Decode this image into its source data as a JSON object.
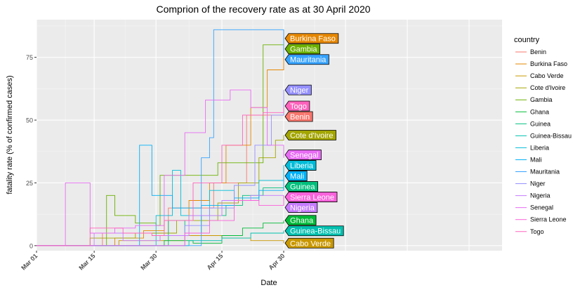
{
  "chart_data": {
    "type": "line",
    "title": "Comprion of the recovery rate as at 30 April 2020",
    "xlabel": "Date",
    "ylabel": "fatality rate (% of confirmed cases)",
    "legend_title": "country",
    "legend_position": "right",
    "grid": true,
    "x_ticks": [
      "Mar 01",
      "Mar 15",
      "Mar 30",
      "Apr 15",
      "Apr 30"
    ],
    "y_ticks": [
      "0",
      "25",
      "50",
      "75"
    ],
    "xlim": [
      "2020-03-01",
      "2020-06-22"
    ],
    "ylim": [
      -2,
      90
    ],
    "series": [
      {
        "name": "Benin",
        "color": "#F8766D",
        "label": "Benin",
        "values": [
          [
            "2020-03-01",
            0
          ],
          [
            "2020-03-16",
            0
          ],
          [
            "2020-03-17",
            5
          ],
          [
            "2020-04-01",
            5
          ],
          [
            "2020-04-02",
            15
          ],
          [
            "2020-04-12",
            15
          ],
          [
            "2020-04-13",
            25
          ],
          [
            "2020-04-20",
            25
          ],
          [
            "2020-04-21",
            52
          ],
          [
            "2020-04-30",
            52
          ]
        ]
      },
      {
        "name": "Burkina Faso",
        "color": "#E58700",
        "label": "Burkina Faso",
        "values": [
          [
            "2020-03-01",
            0
          ],
          [
            "2020-03-15",
            0
          ],
          [
            "2020-03-20",
            3
          ],
          [
            "2020-03-27",
            6
          ],
          [
            "2020-04-01",
            10
          ],
          [
            "2020-04-07",
            18
          ],
          [
            "2020-04-12",
            25
          ],
          [
            "2020-04-16",
            40
          ],
          [
            "2020-04-22",
            55
          ],
          [
            "2020-04-26",
            70
          ],
          [
            "2020-04-30",
            80
          ]
        ]
      },
      {
        "name": "Cabo Verde",
        "color": "#C99800",
        "label": "Cabo Verde",
        "values": [
          [
            "2020-03-01",
            0
          ],
          [
            "2020-03-20",
            0
          ],
          [
            "2020-03-21",
            2
          ],
          [
            "2020-04-04",
            2
          ],
          [
            "2020-04-06",
            4
          ],
          [
            "2020-04-15",
            3
          ],
          [
            "2020-04-22",
            2
          ],
          [
            "2020-04-30",
            1
          ]
        ]
      },
      {
        "name": "Cote d'Ivoire",
        "color": "#A3A500",
        "label": "Cote d'Ivoire",
        "values": [
          [
            "2020-03-01",
            0
          ],
          [
            "2020-03-12",
            0
          ],
          [
            "2020-03-14",
            3
          ],
          [
            "2020-03-25",
            5
          ],
          [
            "2020-04-04",
            10
          ],
          [
            "2020-04-14",
            17
          ],
          [
            "2020-04-19",
            25
          ],
          [
            "2020-04-24",
            35
          ],
          [
            "2020-04-28",
            42
          ],
          [
            "2020-04-30",
            44
          ]
        ]
      },
      {
        "name": "Gambia",
        "color": "#6BB100",
        "label": "Gambia",
        "values": [
          [
            "2020-03-01",
            0
          ],
          [
            "2020-03-17",
            0
          ],
          [
            "2020-03-18",
            20
          ],
          [
            "2020-03-20",
            12
          ],
          [
            "2020-03-25",
            9
          ],
          [
            "2020-03-30",
            8
          ],
          [
            "2020-03-31",
            28
          ],
          [
            "2020-04-08",
            28
          ],
          [
            "2020-04-14",
            33
          ],
          [
            "2020-04-18",
            33
          ],
          [
            "2020-04-25",
            80
          ],
          [
            "2020-04-30",
            80
          ]
        ]
      },
      {
        "name": "Ghana",
        "color": "#00BA38",
        "label": "Ghana",
        "values": [
          [
            "2020-03-01",
            0
          ],
          [
            "2020-03-29",
            0
          ],
          [
            "2020-04-01",
            2
          ],
          [
            "2020-04-08",
            1
          ],
          [
            "2020-04-15",
            4
          ],
          [
            "2020-04-20",
            7
          ],
          [
            "2020-04-25",
            9
          ],
          [
            "2020-04-30",
            10
          ]
        ]
      },
      {
        "name": "Guinea",
        "color": "#00BF7D",
        "label": "Guinea",
        "values": [
          [
            "2020-03-01",
            0
          ],
          [
            "2020-03-31",
            0
          ],
          [
            "2020-04-02",
            10
          ],
          [
            "2020-04-06",
            5
          ],
          [
            "2020-04-10",
            12
          ],
          [
            "2020-04-16",
            16
          ],
          [
            "2020-04-20",
            20
          ],
          [
            "2020-04-25",
            23
          ],
          [
            "2020-04-30",
            22
          ]
        ]
      },
      {
        "name": "Guinea-Bissau",
        "color": "#00C0AF",
        "label": "Guinea-Bissau",
        "values": [
          [
            "2020-03-01",
            0
          ],
          [
            "2020-04-03",
            0
          ],
          [
            "2020-04-07",
            2
          ],
          [
            "2020-04-15",
            3
          ],
          [
            "2020-04-22",
            5
          ],
          [
            "2020-04-30",
            6
          ]
        ]
      },
      {
        "name": "Liberia",
        "color": "#00BCD8",
        "label": "Liberia",
        "values": [
          [
            "2020-03-01",
            0
          ],
          [
            "2020-03-29",
            0
          ],
          [
            "2020-03-30",
            12
          ],
          [
            "2020-04-03",
            30
          ],
          [
            "2020-04-05",
            12
          ],
          [
            "2020-04-12",
            22
          ],
          [
            "2020-04-18",
            18
          ],
          [
            "2020-04-24",
            26
          ],
          [
            "2020-04-30",
            32
          ]
        ]
      },
      {
        "name": "Mali",
        "color": "#00B0F6",
        "label": "Mali",
        "values": [
          [
            "2020-03-01",
            0
          ],
          [
            "2020-03-25",
            0
          ],
          [
            "2020-03-26",
            40
          ],
          [
            "2020-03-29",
            20
          ],
          [
            "2020-04-03",
            15
          ],
          [
            "2020-04-10",
            16
          ],
          [
            "2020-04-18",
            19
          ],
          [
            "2020-04-24",
            22
          ],
          [
            "2020-04-30",
            27
          ]
        ]
      },
      {
        "name": "Mauritania",
        "color": "#35A2FF",
        "label": "Mauritania",
        "values": [
          [
            "2020-03-01",
            0
          ],
          [
            "2020-04-09",
            0
          ],
          [
            "2020-04-10",
            35
          ],
          [
            "2020-04-12",
            43
          ],
          [
            "2020-04-13",
            86
          ],
          [
            "2020-04-27",
            86
          ],
          [
            "2020-04-30",
            75
          ]
        ]
      },
      {
        "name": "Niger",
        "color": "#9590FF",
        "label": "Niger",
        "values": [
          [
            "2020-03-01",
            0
          ],
          [
            "2020-04-04",
            0
          ],
          [
            "2020-04-06",
            8
          ],
          [
            "2020-04-12",
            15
          ],
          [
            "2020-04-18",
            24
          ],
          [
            "2020-04-23",
            40
          ],
          [
            "2020-04-27",
            52
          ],
          [
            "2020-04-30",
            62
          ]
        ]
      },
      {
        "name": "Nigeria",
        "color": "#C77CFF",
        "label": "Nigeria",
        "values": [
          [
            "2020-03-01",
            0
          ],
          [
            "2020-03-10",
            0
          ],
          [
            "2020-03-15",
            5
          ],
          [
            "2020-03-22",
            2
          ],
          [
            "2020-03-28",
            2
          ],
          [
            "2020-03-31",
            4
          ],
          [
            "2020-04-07",
            12
          ],
          [
            "2020-04-15",
            18
          ],
          [
            "2020-04-22",
            20
          ],
          [
            "2020-04-30",
            18
          ]
        ]
      },
      {
        "name": "Senegal",
        "color": "#E76BF3",
        "label": "Senegal",
        "values": [
          [
            "2020-03-01",
            0
          ],
          [
            "2020-03-07",
            0
          ],
          [
            "2020-03-08",
            25
          ],
          [
            "2020-03-12",
            25
          ],
          [
            "2020-03-14",
            5
          ],
          [
            "2020-03-20",
            7
          ],
          [
            "2020-03-25",
            8
          ],
          [
            "2020-04-01",
            28
          ],
          [
            "2020-04-06",
            45
          ],
          [
            "2020-04-11",
            58
          ],
          [
            "2020-04-17",
            62
          ],
          [
            "2020-04-22",
            55
          ],
          [
            "2020-04-26",
            40
          ],
          [
            "2020-04-30",
            35
          ]
        ]
      },
      {
        "name": "Sierra Leone",
        "color": "#FA62DB",
        "label": "Sierra Leone",
        "values": [
          [
            "2020-03-01",
            0
          ],
          [
            "2020-04-02",
            0
          ],
          [
            "2020-04-06",
            5
          ],
          [
            "2020-04-12",
            10
          ],
          [
            "2020-04-18",
            18
          ],
          [
            "2020-04-24",
            16
          ],
          [
            "2020-04-30",
            20
          ]
        ]
      },
      {
        "name": "Togo",
        "color": "#FF62BC",
        "label": "Togo",
        "values": [
          [
            "2020-03-01",
            0
          ],
          [
            "2020-03-08",
            0
          ],
          [
            "2020-03-14",
            7
          ],
          [
            "2020-03-22",
            5
          ],
          [
            "2020-03-29",
            4
          ],
          [
            "2020-04-01",
            10
          ],
          [
            "2020-04-08",
            25
          ],
          [
            "2020-04-15",
            40
          ],
          [
            "2020-04-20",
            52
          ],
          [
            "2020-04-25",
            53
          ],
          [
            "2020-04-30",
            55
          ]
        ]
      }
    ]
  }
}
